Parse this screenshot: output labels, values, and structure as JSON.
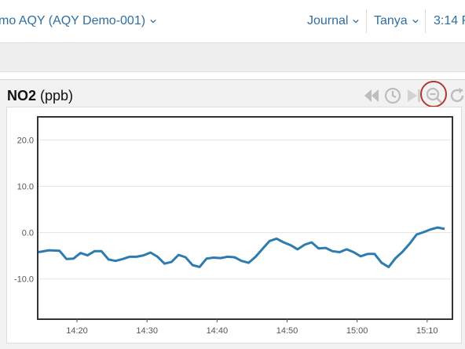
{
  "header": {
    "device_title": "mo AQY (AQY Demo-001)",
    "journal": "Journal",
    "user": "Tanya",
    "time": "3:14 P"
  },
  "panel": {
    "metric": "NO2",
    "unit": "(ppb)"
  },
  "icons": {
    "rewind": "rewind-icon",
    "history": "clock-icon",
    "forward": "play-forward-icon",
    "zoom_out": "zoom-out-icon",
    "refresh": "refresh-icon"
  },
  "colors": {
    "accent": "#2f6f9f",
    "series": "#2e7bb0",
    "highlight": "#b33a2a",
    "control_gray": "#bdbdbd"
  },
  "chart_data": {
    "type": "line",
    "title": "NO2 (ppb)",
    "xlabel": "",
    "ylabel": "",
    "x_ticks": [
      "14:20",
      "14:30",
      "14:40",
      "14:50",
      "15:00",
      "15:10"
    ],
    "x_tick_minutes": [
      20,
      30,
      40,
      50,
      60,
      70
    ],
    "y_ticks": [
      "20.0",
      "10.0",
      "0.0",
      "-10.0"
    ],
    "y_tick_values": [
      20,
      10,
      0,
      -10
    ],
    "xlim_minutes": [
      14.5,
      73.5
    ],
    "ylim": [
      -18.5,
      24.8
    ],
    "grid": "horizontal",
    "series": [
      {
        "values_minutes": [
          14.5,
          16.0,
          17.5,
          18.5,
          19.5,
          20.5,
          21.5,
          22.5,
          23.5,
          24.5,
          25.5,
          26.5,
          27.5,
          28.5,
          29.5,
          30.5,
          31.5,
          32.5,
          33.5,
          34.5,
          35.5,
          36.5,
          37.5,
          38.5,
          39.5,
          40.5,
          41.5,
          42.5,
          43.5,
          44.5,
          45.5,
          46.5,
          47.5,
          48.5,
          49.5,
          50.5,
          51.5,
          52.5,
          53.5,
          54.5,
          55.5,
          56.5,
          57.5,
          58.5,
          59.5,
          60.5,
          61.5,
          62.5,
          63.5,
          64.5,
          65.5,
          66.5,
          67.5,
          68.5,
          69.5,
          70.5,
          71.5,
          72.5
        ],
        "values": [
          -4.2,
          -3.8,
          -3.9,
          -5.7,
          -5.6,
          -4.4,
          -4.9,
          -4.0,
          -4.0,
          -5.8,
          -6.1,
          -5.7,
          -5.2,
          -5.2,
          -4.9,
          -4.3,
          -5.2,
          -6.7,
          -6.3,
          -4.8,
          -5.3,
          -7.0,
          -7.4,
          -5.6,
          -5.4,
          -5.5,
          -5.2,
          -5.3,
          -6.1,
          -6.5,
          -5.2,
          -3.5,
          -1.8,
          -1.3,
          -2.1,
          -2.7,
          -3.6,
          -2.6,
          -2.1,
          -3.4,
          -3.3,
          -4.0,
          -4.2,
          -3.6,
          -4.2,
          -5.1,
          -4.6,
          -4.6,
          -6.5,
          -7.4,
          -5.5,
          -4.1,
          -2.4,
          -0.4,
          0.1,
          0.7,
          1.1,
          0.8
        ]
      }
    ]
  }
}
